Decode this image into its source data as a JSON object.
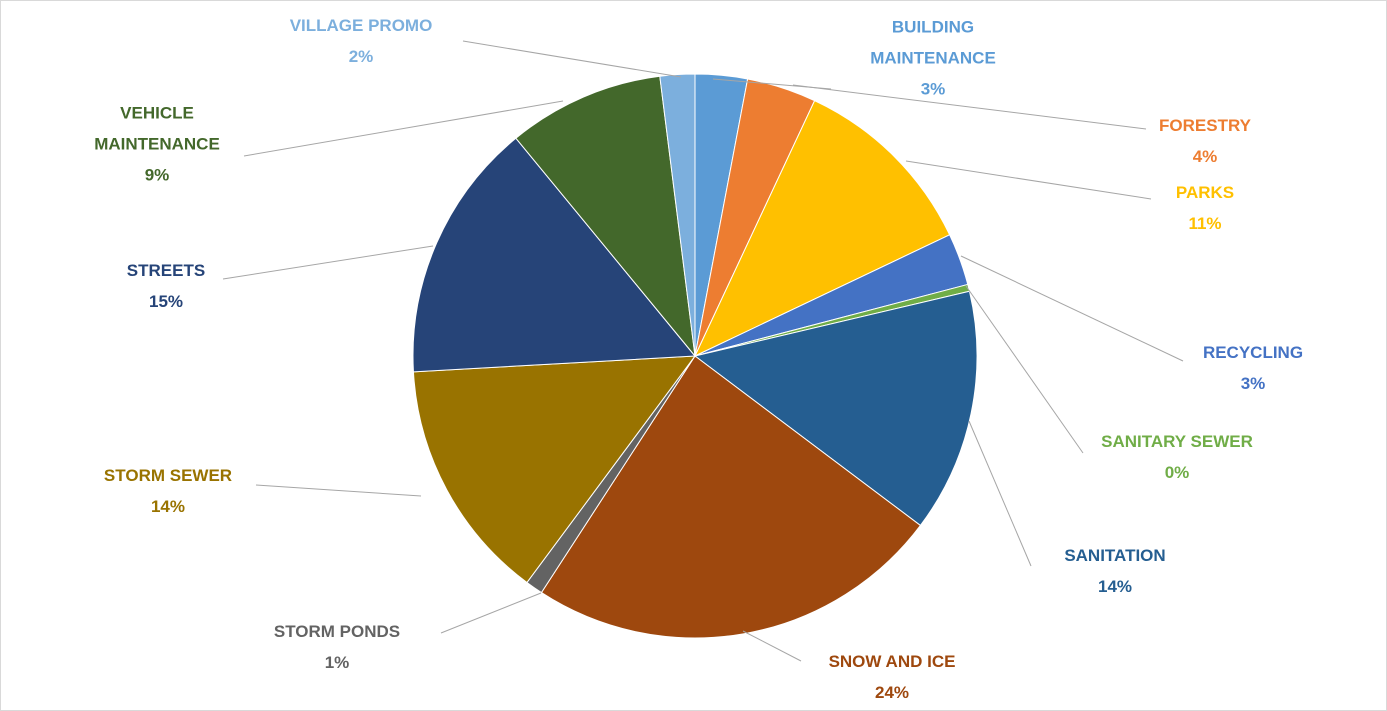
{
  "chart_data": {
    "type": "pie",
    "categories": [
      "BUILDING MAINTENANCE",
      "FORESTRY",
      "PARKS",
      "RECYCLING",
      "SANITARY SEWER",
      "SANITATION",
      "SNOW AND ICE",
      "STORM PONDS",
      "STORM SEWER",
      "STREETS",
      "VEHICLE MAINTENANCE",
      "VILLAGE PROMO"
    ],
    "values": [
      3,
      4,
      11,
      3,
      0.4,
      14,
      24,
      1,
      14,
      15,
      9,
      2
    ],
    "value_labels": [
      "3%",
      "4%",
      "11%",
      "3%",
      "0%",
      "14%",
      "24%",
      "1%",
      "14%",
      "15%",
      "9%",
      "2%"
    ],
    "colors": [
      "#5b9bd5",
      "#ed7d31",
      "#ffc000",
      "#4472c4",
      "#70ad47",
      "#255e91",
      "#9e480e",
      "#636363",
      "#997300",
      "#264478",
      "#43682b",
      "#7cafdd"
    ]
  }
}
